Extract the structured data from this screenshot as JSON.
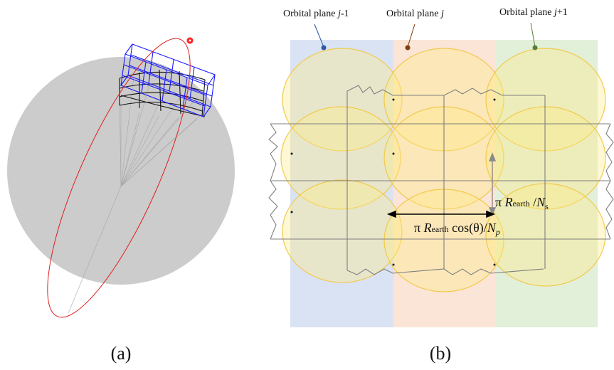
{
  "panel_a": {
    "caption": "(a)"
  },
  "panel_b": {
    "caption": "(b)",
    "planes": [
      {
        "prefix": "Orbital plane ",
        "var": "j",
        "suffix": "-1",
        "band_color": "#dae3f3",
        "marker_color": "#2e5aa8"
      },
      {
        "prefix": "Orbital plane ",
        "var": "j",
        "suffix": "",
        "band_color": "#fbe5d6",
        "marker_color": "#843c0c"
      },
      {
        "prefix": "Orbital plane ",
        "var": "j",
        "suffix": "+1",
        "band_color": "#e2efd9",
        "marker_color": "#548235"
      }
    ],
    "vertical_annotation": {
      "pi": "π",
      "R": "R",
      "sub": "earth",
      "rest": " /",
      "N": "N",
      "Nsub": "s"
    },
    "horizontal_annotation": {
      "pi": "π",
      "R": "R",
      "sub": "earth",
      "rest": " cos(θ)/",
      "N": "N",
      "Nsub": "p"
    }
  },
  "colors": {
    "earth": "#cccccc",
    "orbit": "#e02020",
    "grid_blue": "#1a1aff",
    "grid_black": "#111111",
    "circle_stroke": "#f2c94c",
    "circle_fill": "rgba(255,236,130,0.35)",
    "cell_line": "#7f7f7f"
  }
}
